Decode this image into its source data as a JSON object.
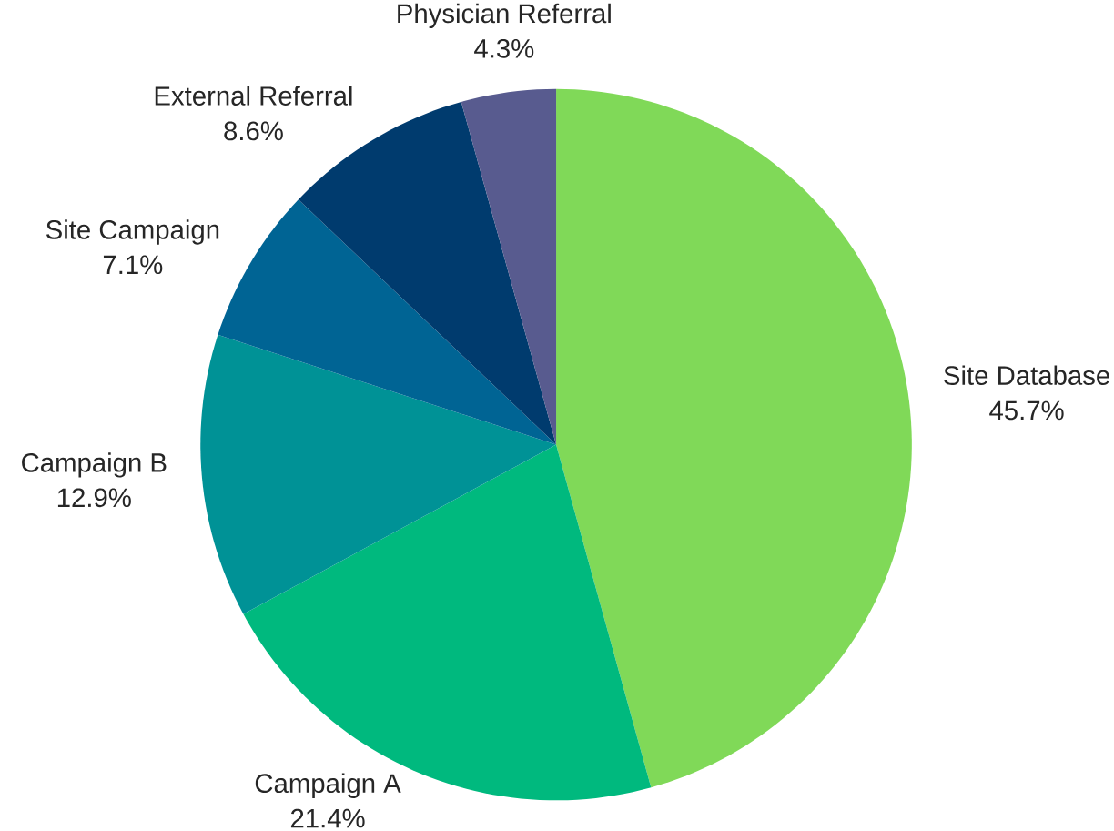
{
  "chart_data": {
    "type": "pie",
    "categories": [
      "Site Database",
      "Campaign A",
      "Campaign B",
      "Site Campaign",
      "External Referral",
      "Physician Referral"
    ],
    "values": [
      45.7,
      21.4,
      12.9,
      7.1,
      8.6,
      4.3
    ],
    "value_labels": [
      "45.7%",
      "21.4%",
      "12.9%",
      "7.1%",
      "8.6%",
      "4.3%"
    ],
    "colors": [
      "#80d958",
      "#00b97e",
      "#009296",
      "#006494",
      "#003b6e",
      "#585b8f"
    ]
  }
}
